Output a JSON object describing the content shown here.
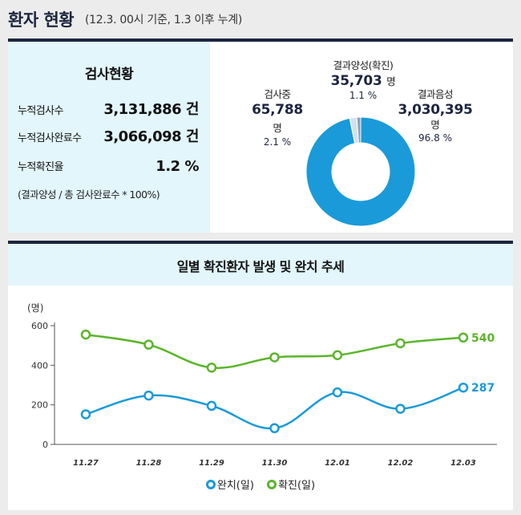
{
  "header": {
    "title": "환자 현황",
    "subtitle": "(12.3. 00시 기준, 1.3 이후 누계)"
  },
  "testing": {
    "title": "검사현황",
    "rows": [
      {
        "label": "누적검사수",
        "value": "3,131,886 건"
      },
      {
        "label": "누적검사완료수",
        "value": "3,066,098 건"
      },
      {
        "label": "누적확진율",
        "value": "1.2 %"
      }
    ],
    "note": "(결과양성 / 총 검사완료수 * 100%)"
  },
  "colors": {
    "navy": "#1c2540",
    "blue": "#1a9ad9",
    "green": "#5bb52a",
    "light_blue": "#e2f6fc"
  },
  "chart_data": [
    {
      "type": "pie",
      "slices": [
        {
          "name": "결과음성",
          "value": 3030395,
          "value_label": "3,030,395",
          "unit": "명",
          "percent_label": "96.8 %",
          "color": "#1a9ad9"
        },
        {
          "name": "검사중",
          "value": 65788,
          "value_label": "65,788",
          "unit": "명",
          "percent_label": "2.1 %",
          "color": "#d6e0ea"
        },
        {
          "name": "결과양성(확진)",
          "value": 35703,
          "value_label": "35,703",
          "unit": "명",
          "percent_label": "1.1 %",
          "color": "#8aa0b6"
        }
      ]
    },
    {
      "type": "line",
      "title": "일별 확진환자 발생 및 완치 추세",
      "ylabel": "(명)",
      "ylim": [
        0,
        600
      ],
      "yticks": [
        0,
        200,
        400,
        600
      ],
      "categories": [
        "11.27",
        "11.28",
        "11.29",
        "11.30",
        "12.01",
        "12.02",
        "12.03"
      ],
      "series": [
        {
          "name": "완치(일)",
          "color": "#1a9ad9",
          "values": [
            152,
            247,
            195,
            82,
            263,
            180,
            287
          ],
          "end_label": "287"
        },
        {
          "name": "확진(일)",
          "color": "#5bb52a",
          "values": [
            555,
            504,
            388,
            440,
            451,
            511,
            540
          ],
          "end_label": "540"
        }
      ],
      "grid": false,
      "legend": "bottom"
    }
  ]
}
